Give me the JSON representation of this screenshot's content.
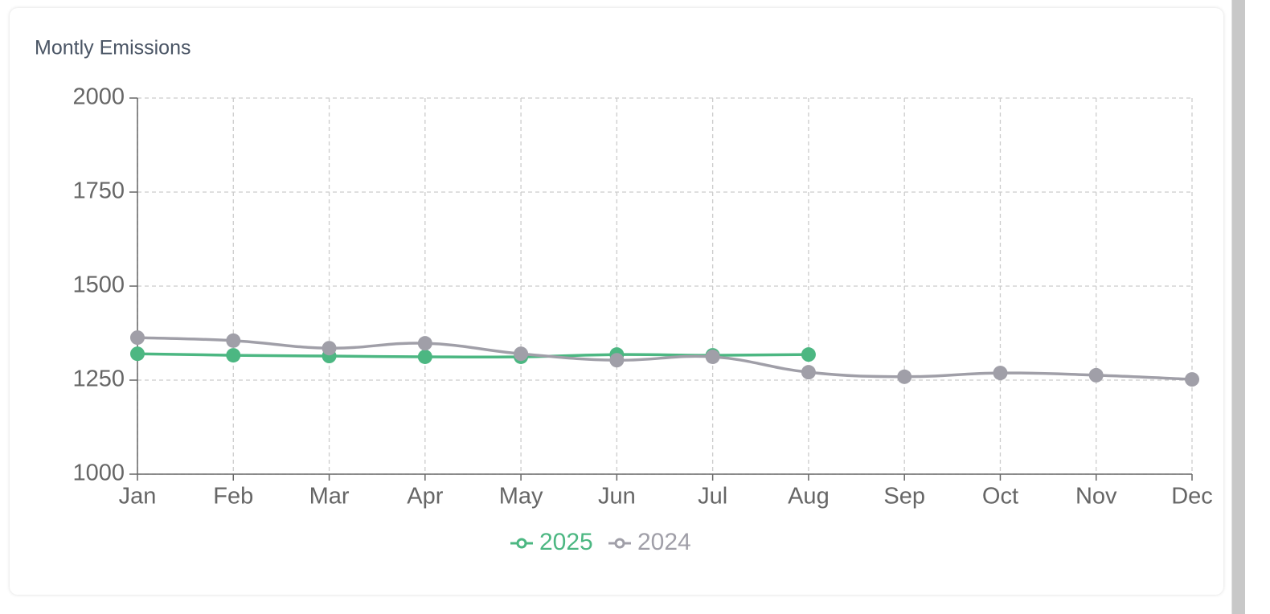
{
  "chart_data": {
    "type": "line",
    "title": "Montly Emissions",
    "categories": [
      "Jan",
      "Feb",
      "Mar",
      "Apr",
      "May",
      "Jun",
      "Jul",
      "Aug",
      "Sep",
      "Oct",
      "Nov",
      "Dec"
    ],
    "series": [
      {
        "name": "2025",
        "color": "#4cb782",
        "values": [
          1320,
          1316,
          1314,
          1312,
          1312,
          1318,
          1316,
          1318,
          null,
          null,
          null,
          null
        ]
      },
      {
        "name": "2024",
        "color": "#a09fa8",
        "values": [
          1363,
          1355,
          1335,
          1348,
          1320,
          1303,
          1312,
          1271,
          1259,
          1269,
          1263,
          1252
        ]
      }
    ],
    "ylim": [
      1000,
      2000
    ],
    "yticks": [
      1000,
      1250,
      1500,
      1750,
      2000
    ],
    "grid": true,
    "legend": "bottom"
  }
}
